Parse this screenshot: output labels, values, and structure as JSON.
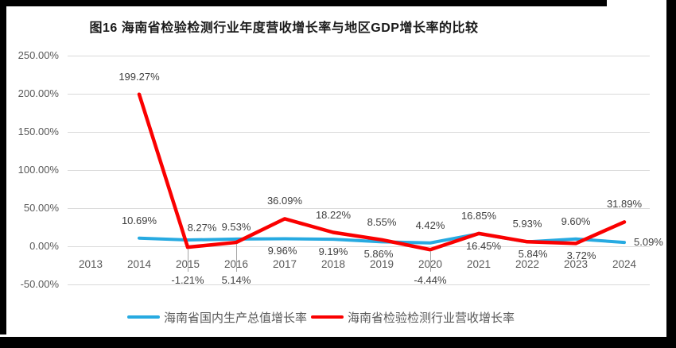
{
  "title": "图16 海南省检验检测行业年度营收增长率与地区GDP增长率的比较",
  "chart_data": {
    "type": "line",
    "x": [
      "2013",
      "2014",
      "2015",
      "2016",
      "2017",
      "2018",
      "2019",
      "2020",
      "2021",
      "2022",
      "2023",
      "2024"
    ],
    "y_axis": {
      "ticks": [
        {
          "label": "250.00%",
          "value": 250
        },
        {
          "label": "200.00%",
          "value": 200
        },
        {
          "label": "150.00%",
          "value": 150
        },
        {
          "label": "100.00%",
          "value": 100
        },
        {
          "label": "50.00%",
          "value": 50
        },
        {
          "label": "0.00%",
          "value": 0
        },
        {
          "label": "-50.00%",
          "value": -50
        }
      ],
      "ylim": [
        -50,
        250
      ]
    },
    "grid": true,
    "legend_position": "bottom",
    "series": [
      {
        "name": "海南省国内生产总值增长率",
        "color": "#27AAE1",
        "stroke_width": 4,
        "values": [
          null,
          10.69,
          8.27,
          9.53,
          9.96,
          9.19,
          5.86,
          4.42,
          16.45,
          5.84,
          9.6,
          5.09
        ],
        "data_labels": [
          null,
          {
            "text": "10.69%",
            "placement": "above"
          },
          {
            "text": "8.27%",
            "placement": "above-near",
            "dx": 18
          },
          {
            "text": "9.53%",
            "placement": "above-near"
          },
          {
            "text": "9.96%",
            "placement": "below",
            "dx": -3
          },
          {
            "text": "9.19%",
            "placement": "below"
          },
          {
            "text": "5.86%",
            "placement": "below",
            "dx": -4
          },
          {
            "text": "4.42%",
            "placement": "above"
          },
          {
            "text": "16.45%",
            "placement": "below",
            "dx": 6
          },
          {
            "text": "5.84%",
            "placement": "below",
            "dx": 7
          },
          {
            "text": "9.60%",
            "placement": "above"
          },
          {
            "text": "5.09%",
            "placement": "right"
          }
        ]
      },
      {
        "name": "海南省检验检测行业营收增长率",
        "color": "#FA0000",
        "stroke_width": 4.5,
        "values": [
          null,
          199.27,
          -1.21,
          5.14,
          36.09,
          18.22,
          8.55,
          -4.44,
          16.85,
          5.93,
          3.72,
          31.89
        ],
        "data_labels": [
          null,
          {
            "text": "199.27%",
            "placement": "above"
          },
          {
            "text": "-1.21%",
            "placement": "below-far"
          },
          {
            "text": "5.14%",
            "placement": "below-far"
          },
          {
            "text": "36.09%",
            "placement": "above"
          },
          {
            "text": "18.22%",
            "placement": "above"
          },
          {
            "text": "8.55%",
            "placement": "above"
          },
          {
            "text": "-4.44%",
            "placement": "below-far"
          },
          {
            "text": "16.85%",
            "placement": "above"
          },
          {
            "text": "5.93%",
            "placement": "above"
          },
          {
            "text": "3.72%",
            "placement": "below",
            "dx": 7
          },
          {
            "text": "31.89%",
            "placement": "above"
          }
        ]
      }
    ]
  },
  "legend": {
    "gdp_label": "海南省国内生产总值增长率",
    "industry_label": "海南省检验检测行业营收增长率"
  }
}
